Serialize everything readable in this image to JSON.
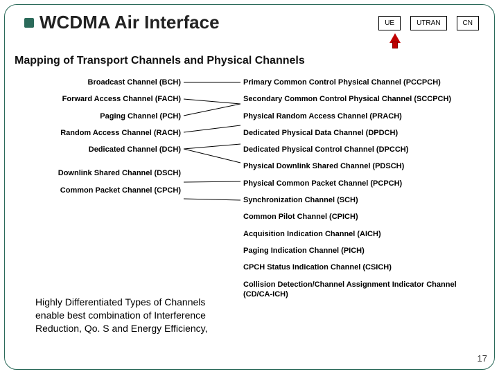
{
  "title": "WCDMA Air Interface",
  "subtitle": "Mapping of Transport Channels and Physical Channels",
  "topBoxes": {
    "ue": "UE",
    "utran": "UTRAN",
    "cn": "CN"
  },
  "left": [
    "Broadcast Channel (BCH)",
    "Forward Access Channel (FACH)",
    "Paging Channel (PCH)",
    "Random Access Channel (RACH)",
    "Dedicated Channel (DCH)",
    "",
    "Downlink Shared Channel (DSCH)",
    "Common Packet Channel (CPCH)"
  ],
  "right": [
    "Primary Common Control Physical Channel (PCCPCH)",
    "Secondary Common Control Physical Channel (SCCPCH)",
    "Physical Random Access Channel (PRACH)",
    "Dedicated Physical Data Channel (DPDCH)",
    "Dedicated Physical Control Channel (DPCCH)",
    "Physical Downlink Shared Channel (PDSCH)",
    "Physical Common Packet Channel (PCPCH)",
    "Synchronization Channel (SCH)",
    "Common Pilot Channel (CPICH)",
    "Acquisition Indication Channel (AICH)",
    "Paging Indication Channel (PICH)",
    "CPCH Status Indication Channel (CSICH)",
    "Collision Detection/Channel Assignment Indicator Channel (CD/CA-ICH)"
  ],
  "note": "Highly Differentiated Types of Channels enable best combination of Interference Reduction, Qo. S and Energy Efficiency,",
  "pageNumber": "17",
  "mappings": [
    {
      "from": 0,
      "to": 0
    },
    {
      "from": 1,
      "to": 1
    },
    {
      "from": 2,
      "to": 1
    },
    {
      "from": 3,
      "to": 2
    },
    {
      "from": 4,
      "to": 3
    },
    {
      "from": 4,
      "to": 4
    },
    {
      "from": 6,
      "to": 5
    },
    {
      "from": 7,
      "to": 6
    }
  ],
  "colors": {
    "accent": "#2b6a5a",
    "arrow": "#c00000"
  }
}
